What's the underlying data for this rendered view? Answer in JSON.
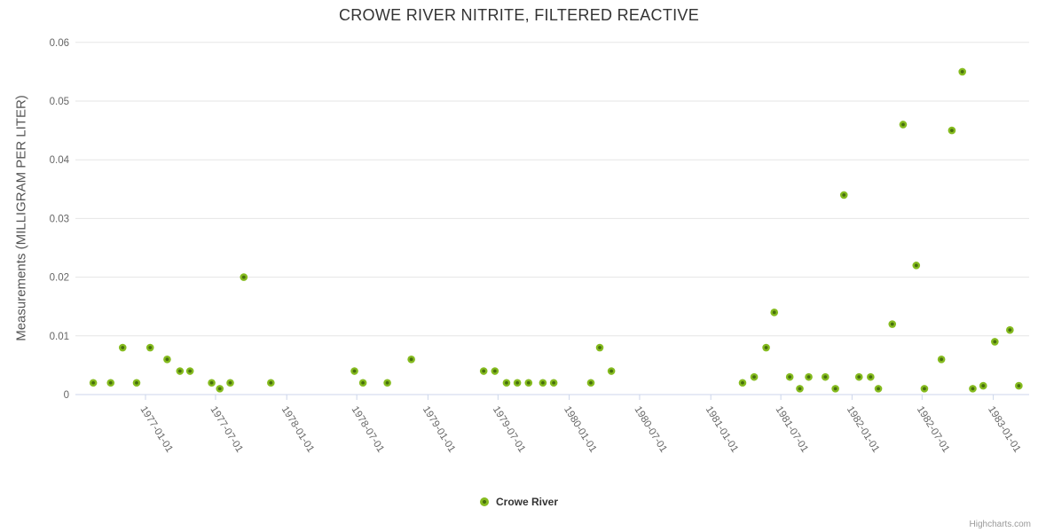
{
  "credit": "Highcharts.com",
  "colors": {
    "point_outer": "#85bb1f",
    "point_inner": "#476f0d",
    "gridline": "#e6e6e6",
    "axis_line": "#ccd6eb",
    "tick_label": "#666666",
    "y_title": "#555555",
    "title": "#333333",
    "credit": "#999999"
  },
  "chart_data": {
    "type": "scatter",
    "title": "CROWE RIVER NITRITE, FILTERED REACTIVE",
    "xlabel": "",
    "ylabel": "Measurements (MILLIGRAM PER LITER)",
    "ylim": [
      0,
      0.06
    ],
    "y_ticks": [
      "0",
      "0.01",
      "0.02",
      "0.03",
      "0.04",
      "0.05",
      "0.06"
    ],
    "x_ticks": [
      "1977-01-01",
      "1977-07-01",
      "1978-01-01",
      "1978-07-01",
      "1979-01-01",
      "1979-07-01",
      "1980-01-01",
      "1980-07-01",
      "1981-01-01",
      "1981-07-01",
      "1982-01-01",
      "1982-07-01",
      "1983-01-01"
    ],
    "grid": true,
    "legend_position": "bottom-center",
    "series": [
      {
        "name": "Crowe River",
        "color": "#85bb1f",
        "points": [
          [
            "1976-08-19",
            0.002
          ],
          [
            "1976-10-03",
            0.002
          ],
          [
            "1976-11-03",
            0.008
          ],
          [
            "1976-12-09",
            0.002
          ],
          [
            "1977-01-13",
            0.008
          ],
          [
            "1977-02-26",
            0.006
          ],
          [
            "1977-03-31",
            0.004
          ],
          [
            "1977-04-26",
            0.004
          ],
          [
            "1977-06-21",
            0.002
          ],
          [
            "1977-07-12",
            0.001
          ],
          [
            "1977-08-08",
            0.002
          ],
          [
            "1977-09-12",
            0.02
          ],
          [
            "1977-11-21",
            0.002
          ],
          [
            "1978-06-25",
            0.004
          ],
          [
            "1978-07-17",
            0.002
          ],
          [
            "1978-09-18",
            0.002
          ],
          [
            "1978-11-19",
            0.006
          ],
          [
            "1979-05-25",
            0.004
          ],
          [
            "1979-06-23",
            0.004
          ],
          [
            "1979-07-23",
            0.002
          ],
          [
            "1979-08-20",
            0.002
          ],
          [
            "1979-09-18",
            0.002
          ],
          [
            "1979-10-25",
            0.002
          ],
          [
            "1979-11-22",
            0.002
          ],
          [
            "1980-02-26",
            0.002
          ],
          [
            "1980-03-20",
            0.008
          ],
          [
            "1980-04-19",
            0.004
          ],
          [
            "1981-03-24",
            0.002
          ],
          [
            "1981-04-23",
            0.003
          ],
          [
            "1981-05-24",
            0.008
          ],
          [
            "1981-06-14",
            0.014
          ],
          [
            "1981-07-24",
            0.003
          ],
          [
            "1981-08-19",
            0.001
          ],
          [
            "1981-09-11",
            0.003
          ],
          [
            "1981-10-24",
            0.003
          ],
          [
            "1981-11-19",
            0.001
          ],
          [
            "1981-12-11",
            0.034
          ],
          [
            "1982-01-19",
            0.003
          ],
          [
            "1982-02-18",
            0.003
          ],
          [
            "1982-03-10",
            0.001
          ],
          [
            "1982-04-15",
            0.012
          ],
          [
            "1982-05-13",
            0.046
          ],
          [
            "1982-06-16",
            0.022
          ],
          [
            "1982-07-07",
            0.001
          ],
          [
            "1982-08-20",
            0.006
          ],
          [
            "1982-09-16",
            0.045
          ],
          [
            "1982-10-13",
            0.055
          ],
          [
            "1982-11-09",
            0.001
          ],
          [
            "1982-12-06",
            0.0015
          ],
          [
            "1983-01-05",
            0.009
          ],
          [
            "1983-02-13",
            0.011
          ],
          [
            "1983-03-08",
            0.0015
          ]
        ]
      }
    ]
  }
}
